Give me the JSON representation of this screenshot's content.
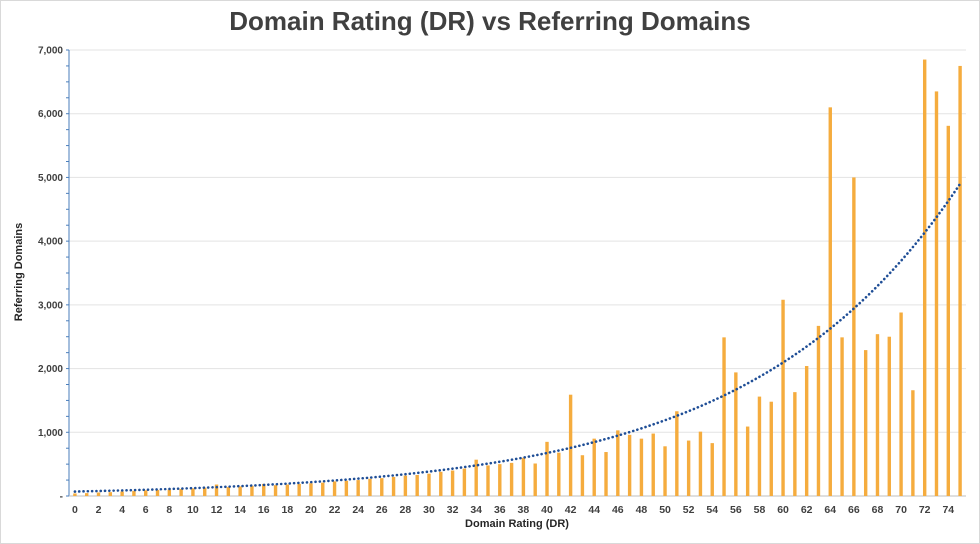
{
  "chart_data": {
    "type": "bar",
    "title": "Domain Rating (DR) vs Referring Domains",
    "xlabel": "Domain Rating (DR)",
    "ylabel": "Referring Domains",
    "ylim": [
      0,
      7000
    ],
    "y_ticks": [
      "-",
      "1,000",
      "2,000",
      "3,000",
      "4,000",
      "5,000",
      "6,000",
      "7,000"
    ],
    "x_tick_labels": [
      "0",
      "2",
      "4",
      "6",
      "8",
      "10",
      "12",
      "14",
      "16",
      "18",
      "20",
      "22",
      "24",
      "26",
      "28",
      "30",
      "32",
      "34",
      "36",
      "38",
      "40",
      "42",
      "44",
      "46",
      "48",
      "50",
      "52",
      "54",
      "56",
      "58",
      "60",
      "62",
      "64",
      "66",
      "68",
      "70",
      "72",
      "74"
    ],
    "grid": "horizontal",
    "legend": "none",
    "categories": [
      0,
      1,
      2,
      3,
      4,
      5,
      6,
      7,
      8,
      9,
      10,
      11,
      12,
      13,
      14,
      15,
      16,
      17,
      18,
      19,
      20,
      21,
      22,
      23,
      24,
      25,
      26,
      27,
      28,
      29,
      30,
      31,
      32,
      33,
      34,
      35,
      36,
      37,
      38,
      39,
      40,
      41,
      42,
      43,
      44,
      45,
      46,
      47,
      48,
      49,
      50,
      51,
      52,
      53,
      54,
      55,
      56,
      57,
      58,
      59,
      60,
      61,
      62,
      63,
      64,
      65,
      66,
      67,
      68,
      69,
      70,
      71,
      72,
      73,
      74,
      75
    ],
    "series": [
      {
        "values": [
          40,
          45,
          55,
          60,
          70,
          80,
          90,
          95,
          100,
          110,
          120,
          130,
          180,
          140,
          150,
          160,
          190,
          170,
          180,
          190,
          200,
          210,
          230,
          240,
          250,
          270,
          280,
          300,
          320,
          330,
          350,
          380,
          400,
          430,
          570,
          480,
          500,
          520,
          600,
          510,
          850,
          680,
          1590,
          640,
          900,
          690,
          1030,
          960,
          900,
          980,
          780,
          1330,
          870,
          1010,
          830,
          2490,
          1940,
          1090,
          1560,
          1480,
          3080,
          1630,
          2040,
          2670,
          6100,
          2490,
          5000,
          2290,
          2540,
          2500,
          2880,
          1660,
          6850,
          6350,
          5810,
          6750
        ],
        "color": "#f5ac3e"
      }
    ],
    "trendline": {
      "type": "exponential",
      "style": "dotted",
      "color": "#1f4e96",
      "start_value": 70,
      "end_value": 4900
    }
  }
}
